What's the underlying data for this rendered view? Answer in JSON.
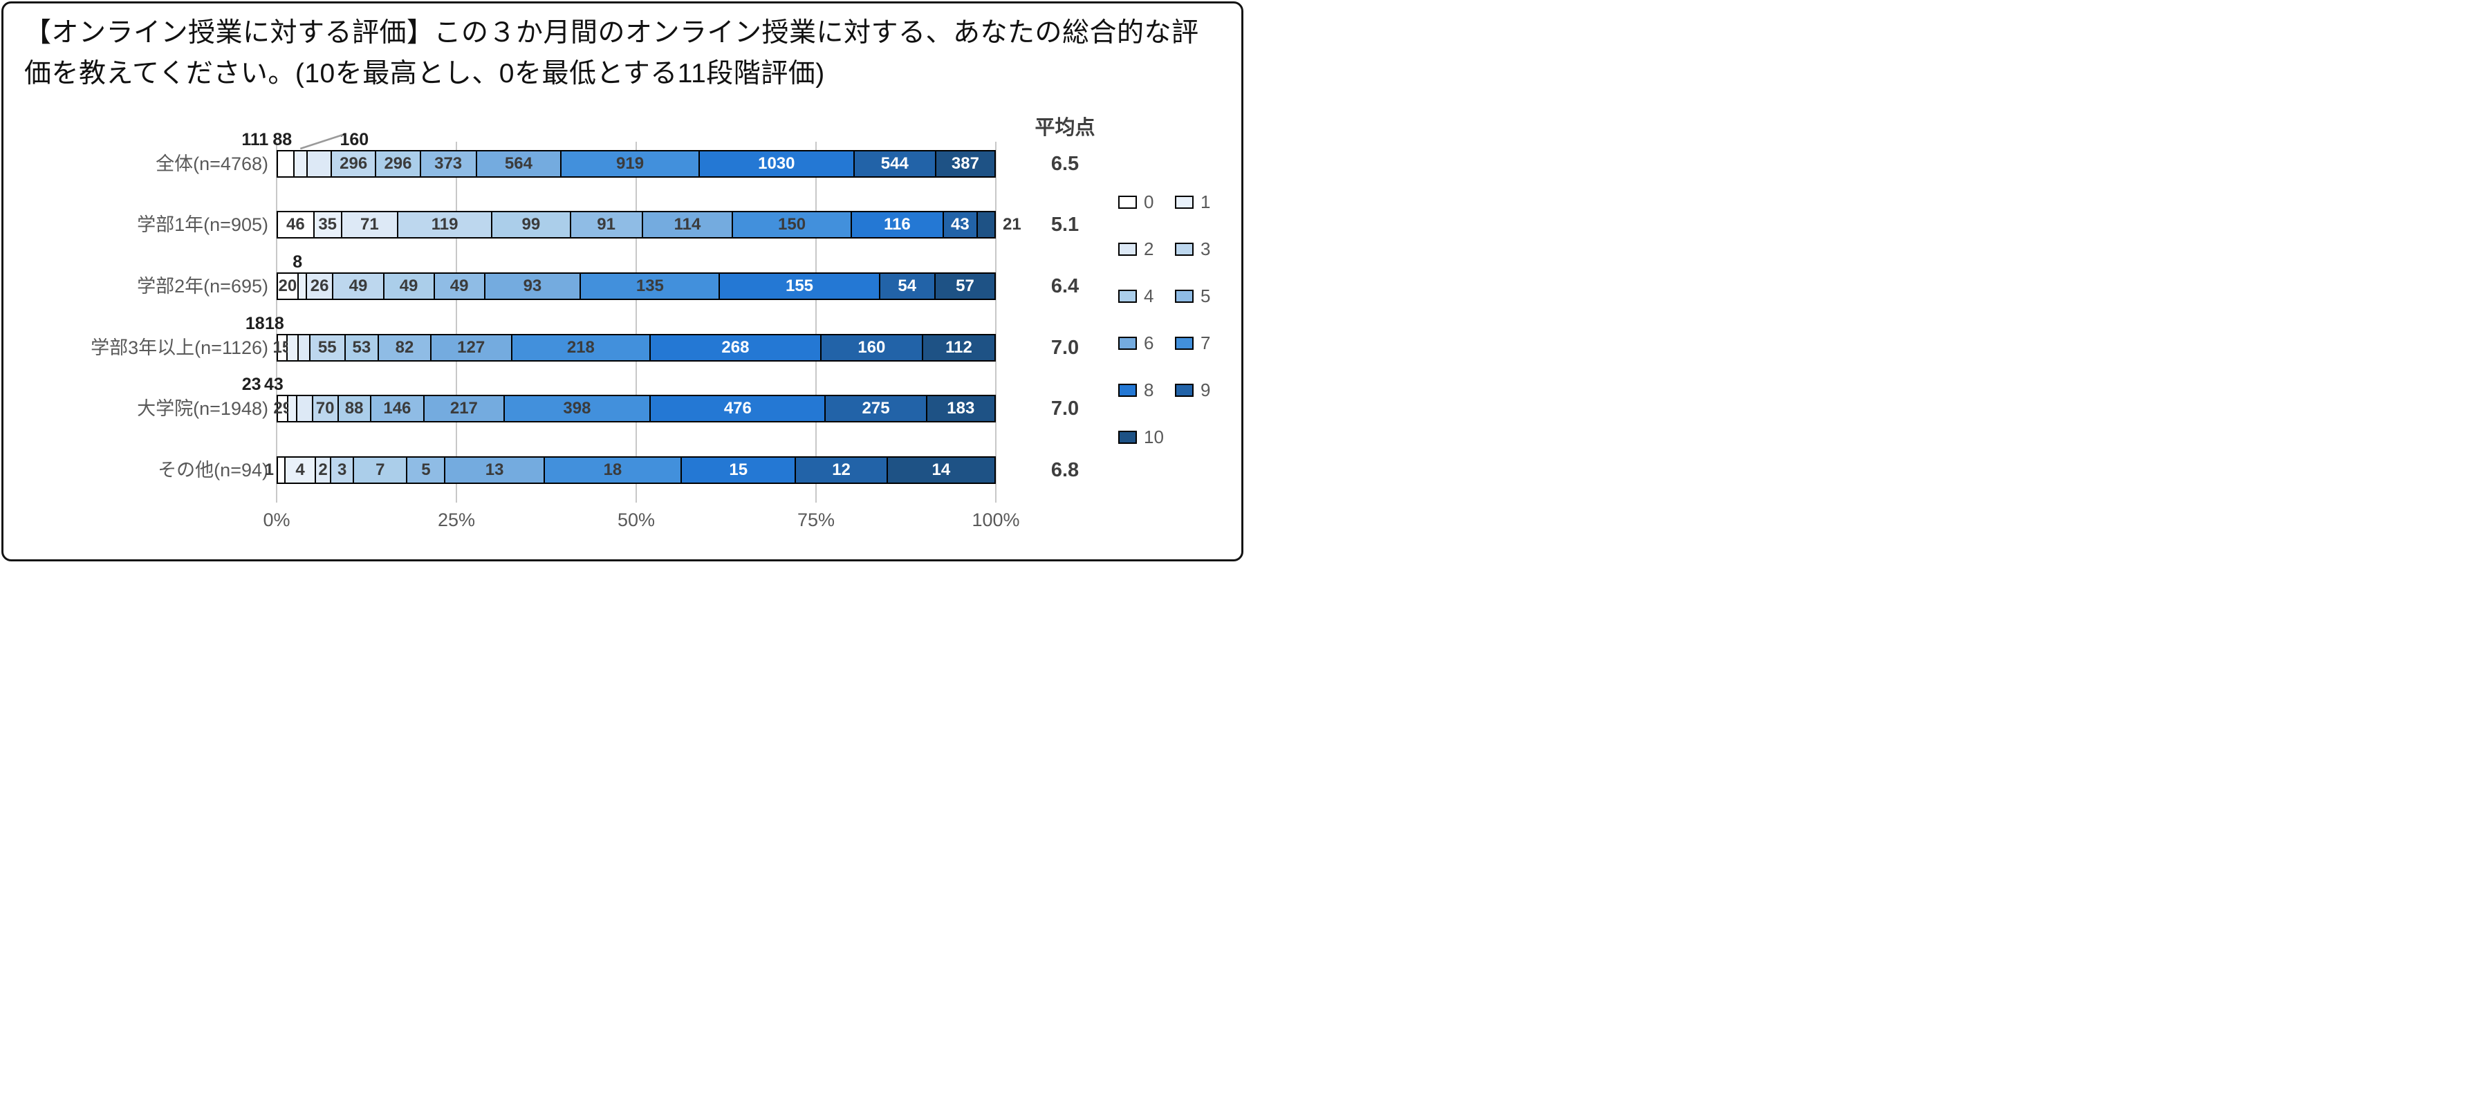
{
  "title": "【オンライン授業に対する評価】この３か月間のオンライン授業に対する、あなたの総合的な評価を教えてください。(10を最高とし、0を最低とする11段階評価)",
  "mean_header": "平均点",
  "chart_data": {
    "type": "bar",
    "subtype": "100pct-stacked-horizontal",
    "legend_position": "right",
    "grid": true,
    "x_ticks": [
      "0%",
      "25%",
      "50%",
      "75%",
      "100%"
    ],
    "rating_levels": [
      "0",
      "1",
      "2",
      "3",
      "4",
      "5",
      "6",
      "7",
      "8",
      "9",
      "10"
    ],
    "level_colors": [
      "#FFFFFF",
      "#E9F1FA",
      "#DDE9F6",
      "#BDD7EE",
      "#ABCEEA",
      "#8FBCE5",
      "#74ABDF",
      "#4290DC",
      "#2478D4",
      "#2263A8",
      "#1E5285"
    ],
    "categories": [
      "全体(n=4768)",
      "学部1年(n=905)",
      "学部2年(n=695)",
      "学部3年以上(n=1126)",
      "大学院(n=1948)",
      "その他(n=94)"
    ],
    "rows": [
      {
        "label": "全体(n=4768)",
        "n": 4768,
        "values": [
          111,
          88,
          160,
          296,
          296,
          373,
          564,
          919,
          1030,
          544,
          387
        ],
        "mean": "6.5"
      },
      {
        "label": "学部1年(n=905)",
        "n": 905,
        "values": [
          46,
          35,
          71,
          119,
          99,
          91,
          114,
          150,
          116,
          43,
          21
        ],
        "mean": "5.1"
      },
      {
        "label": "学部2年(n=695)",
        "n": 695,
        "values": [
          20,
          8,
          26,
          49,
          49,
          49,
          93,
          135,
          155,
          54,
          57
        ],
        "mean": "6.4"
      },
      {
        "label": "学部3年以上(n=1126)",
        "n": 1126,
        "values": [
          15,
          18,
          18,
          55,
          53,
          82,
          127,
          218,
          268,
          160,
          112
        ],
        "mean": "7.0"
      },
      {
        "label": "大学院(n=1948)",
        "n": 1948,
        "values": [
          29,
          23,
          43,
          70,
          88,
          146,
          217,
          398,
          476,
          275,
          183
        ],
        "mean": "7.0"
      },
      {
        "label": "その他(n=94)",
        "n": 94,
        "values": [
          1,
          4,
          2,
          3,
          7,
          5,
          13,
          18,
          15,
          12,
          14
        ],
        "mean": "6.8"
      }
    ]
  }
}
